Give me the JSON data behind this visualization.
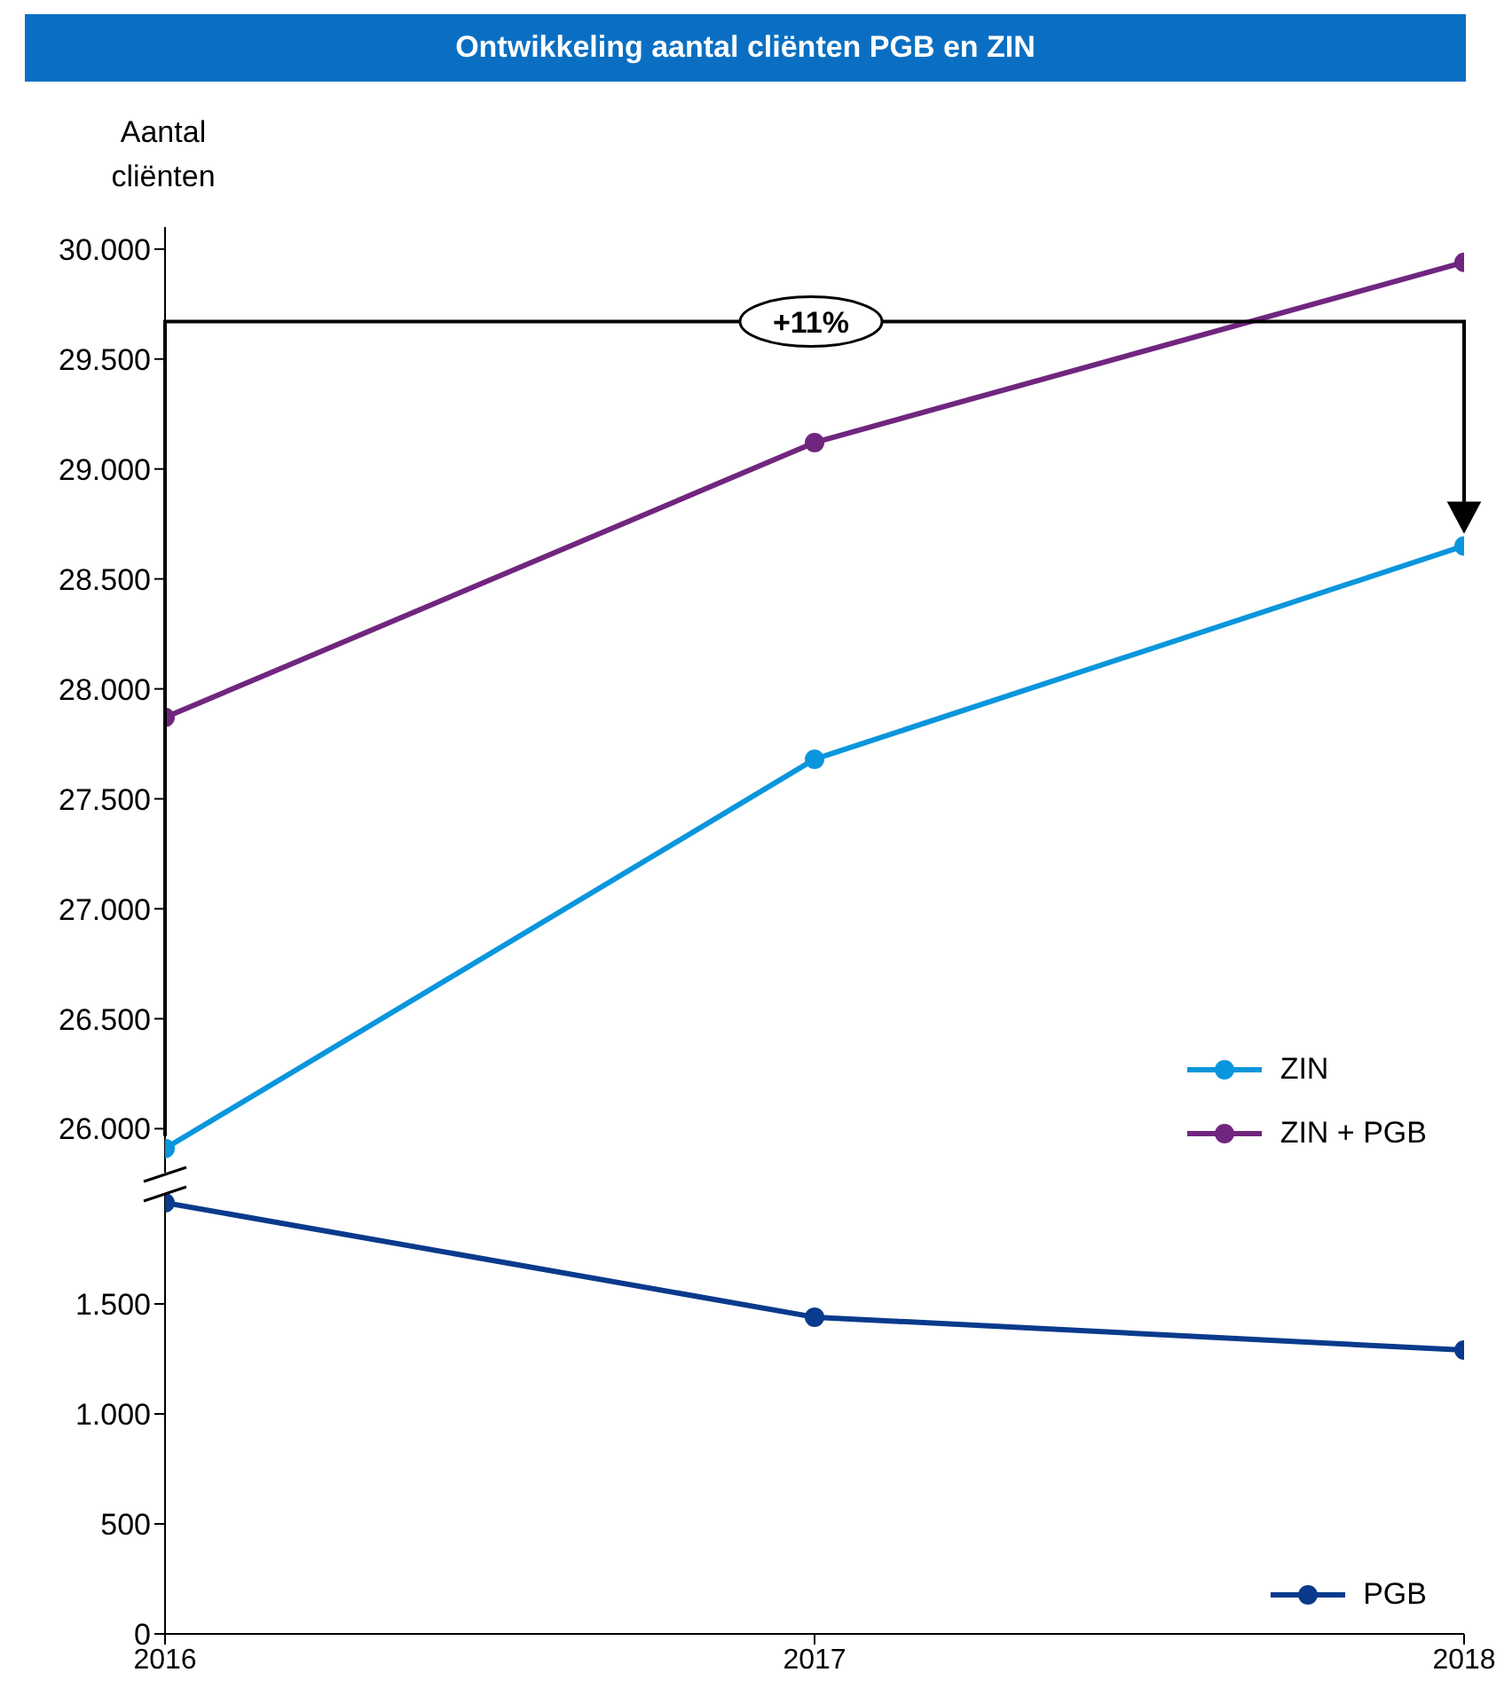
{
  "chart_data": [
    {
      "type": "line",
      "title": "Ontwikkeling aantal cliënten PGB en ZIN",
      "ylabel": "Aantal cliënten",
      "categories": [
        "2016",
        "2017",
        "2018"
      ],
      "series": [
        {
          "name": "ZIN",
          "color": "#0a96dc",
          "values": [
            25910,
            27680,
            28650
          ]
        },
        {
          "name": "ZIN + PGB",
          "color": "#70267f",
          "values": [
            27870,
            29120,
            29940
          ]
        }
      ],
      "ylim": [
        25800,
        30100
      ],
      "yticks": [
        {
          "value": 26000,
          "label": "26.000"
        },
        {
          "value": 26500,
          "label": "26.500"
        },
        {
          "value": 27000,
          "label": "27.000"
        },
        {
          "value": 27500,
          "label": "27.500"
        },
        {
          "value": 28000,
          "label": "28.000"
        },
        {
          "value": 28500,
          "label": "28.500"
        },
        {
          "value": 29000,
          "label": "29.000"
        },
        {
          "value": 29500,
          "label": "29.500"
        },
        {
          "value": 30000,
          "label": "30.000"
        }
      ],
      "tick_labels": "y",
      "legend": "bottom right",
      "marker": "circle",
      "annotations": [
        "+11%"
      ]
    },
    {
      "type": "line",
      "categories": [
        "2016",
        "2017",
        "2018"
      ],
      "series": [
        {
          "name": "PGB",
          "color": "#0a3a8c",
          "values": [
            1960,
            1440,
            1290
          ]
        }
      ],
      "ylim": [
        0,
        2000
      ],
      "yticks": [
        0,
        {
          "value": 500,
          "label": "500"
        },
        {
          "value": 1000,
          "label": "1.000"
        },
        {
          "value": 1500,
          "label": "1.500"
        }
      ],
      "legend": "bottom right",
      "marker": "circle"
    }
  ]
}
